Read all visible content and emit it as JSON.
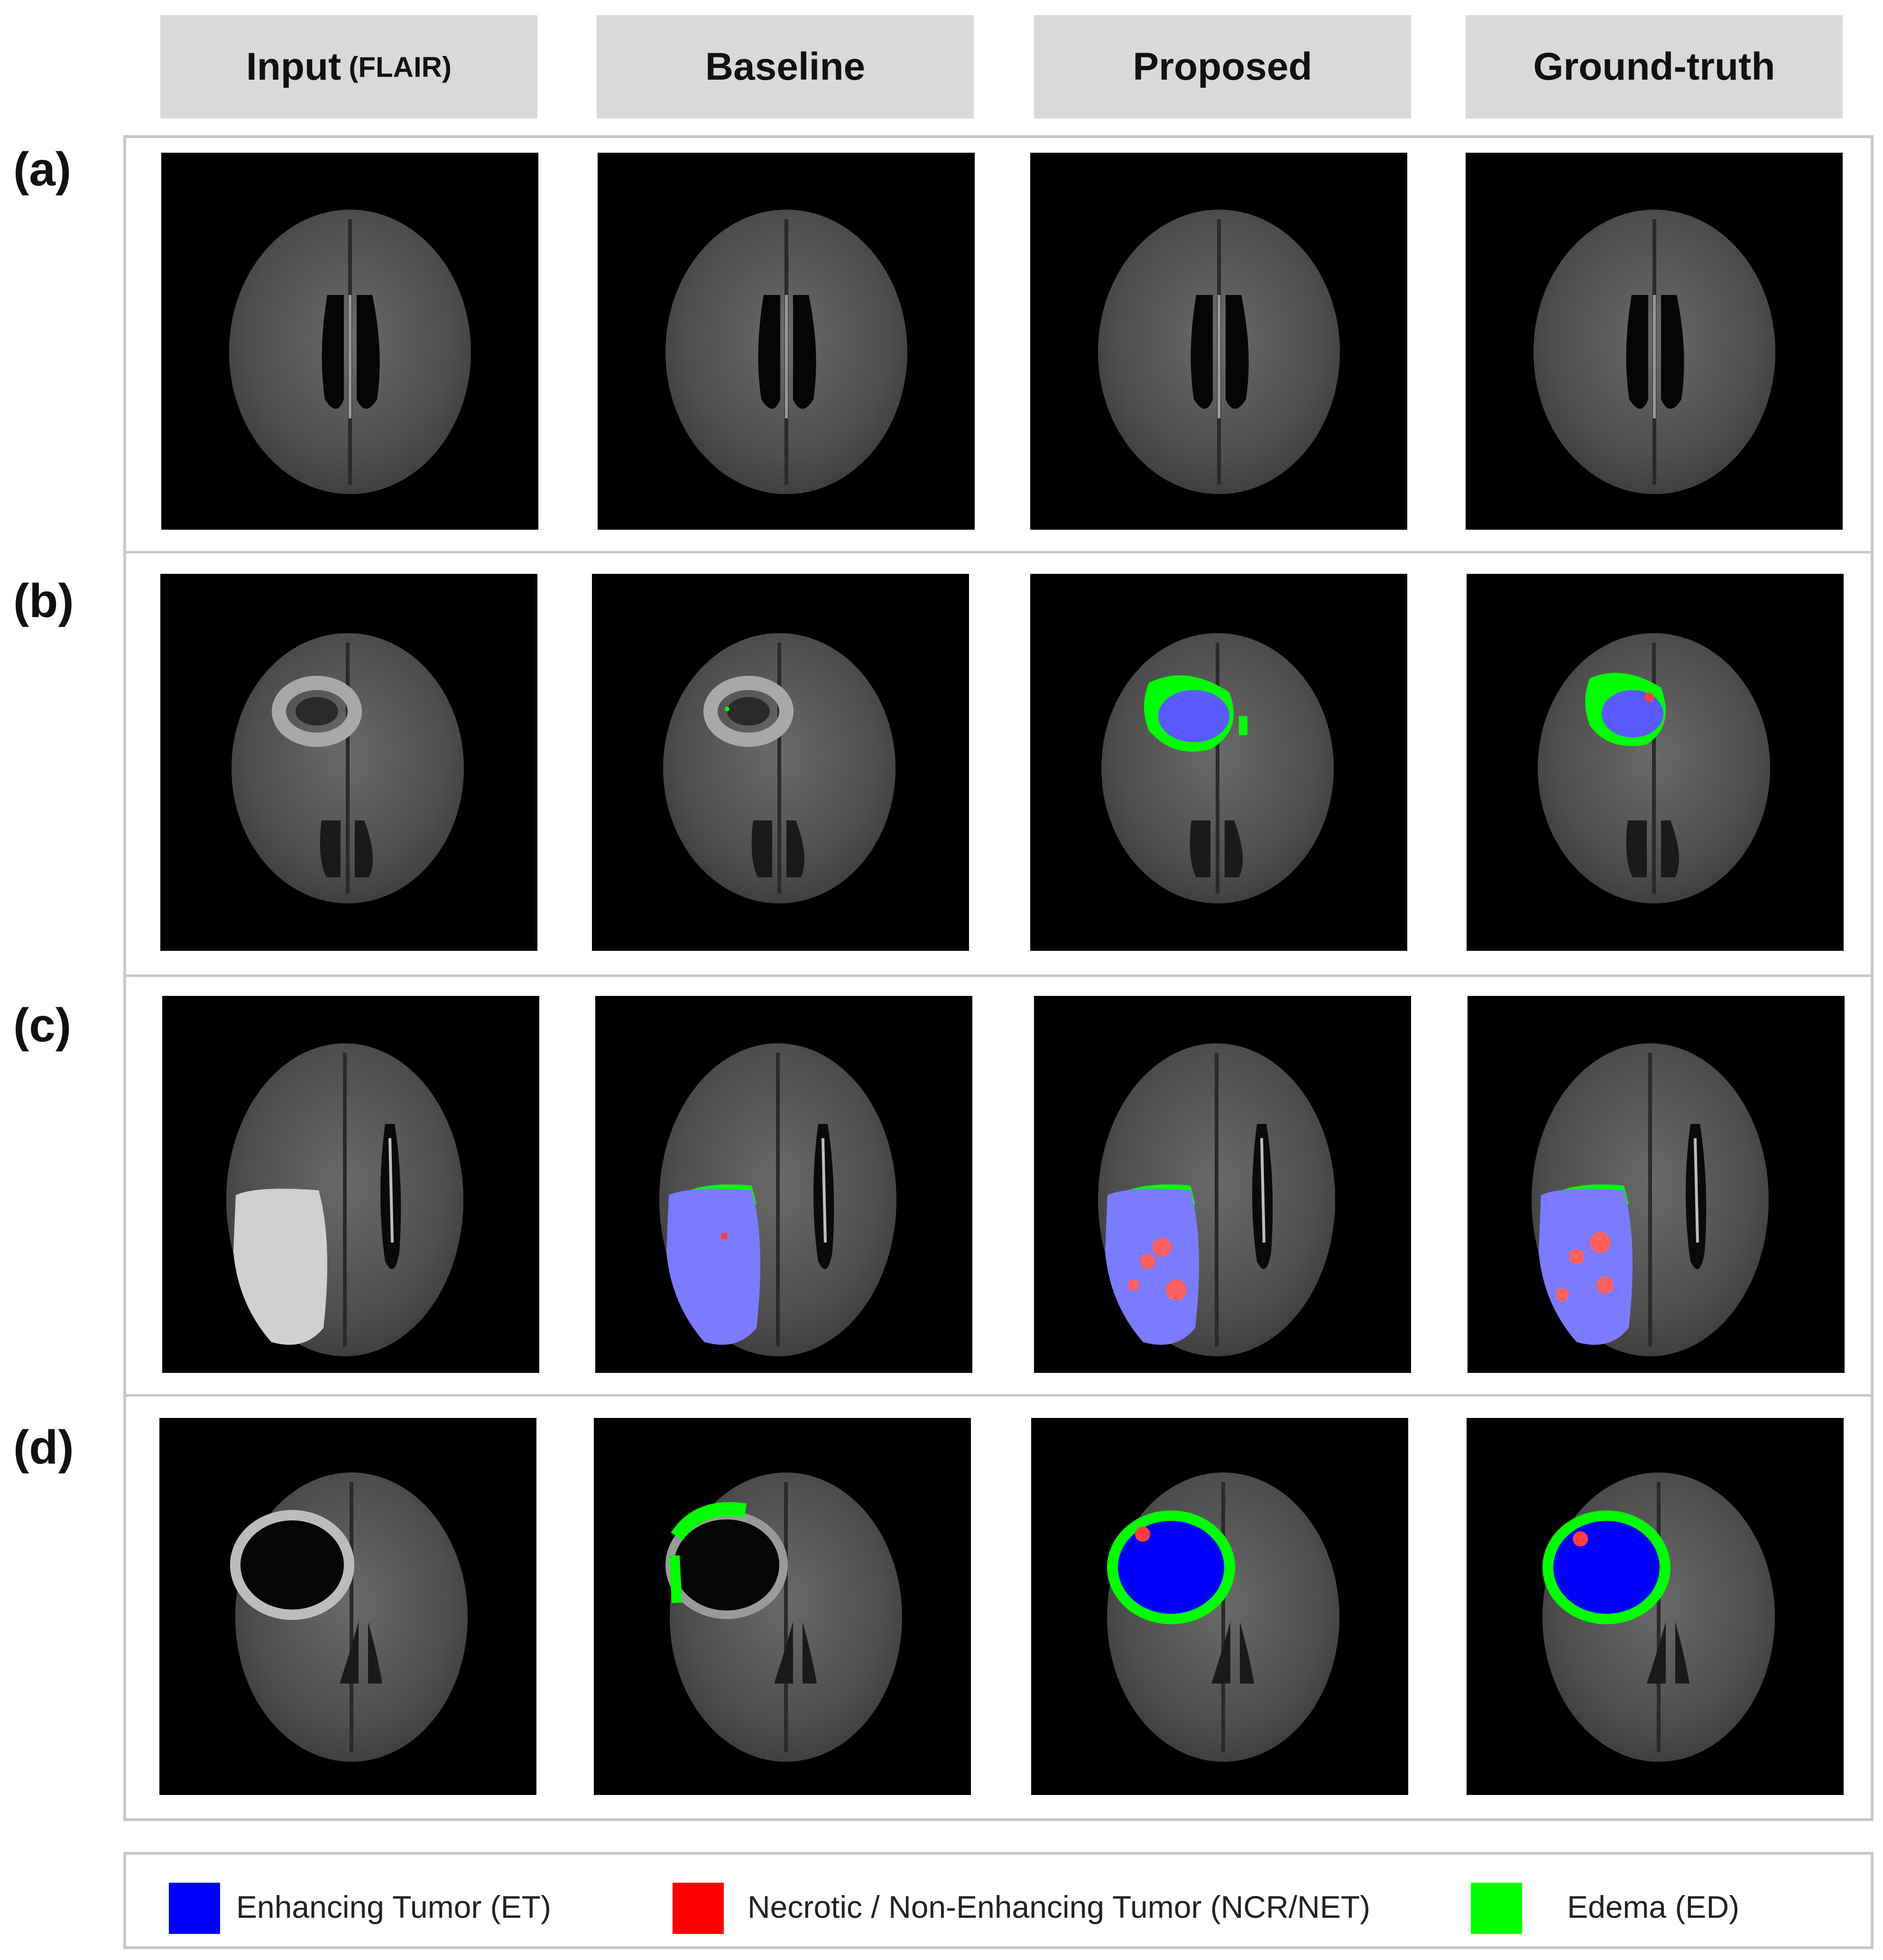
{
  "columns": {
    "input": "Input",
    "input_sub": "(FLAIR)",
    "baseline": "Baseline",
    "proposed": "Proposed",
    "ground_truth": "Ground-truth"
  },
  "rows": [
    "(a)",
    "(b)",
    "(c)",
    "(d)"
  ],
  "legend": {
    "et": "Enhancing Tumor (ET)",
    "ncr": "Necrotic / Non-Enhancing Tumor (NCR/NET)",
    "ed": "Edema  (ED)"
  },
  "colors": {
    "et": "#0000ff",
    "ncr": "#ff0000",
    "ed": "#00ff00",
    "header_bg": "#d9d9d9",
    "border": "#c8c8c8"
  },
  "images": {
    "description_icon": "brain-mri-slice"
  }
}
